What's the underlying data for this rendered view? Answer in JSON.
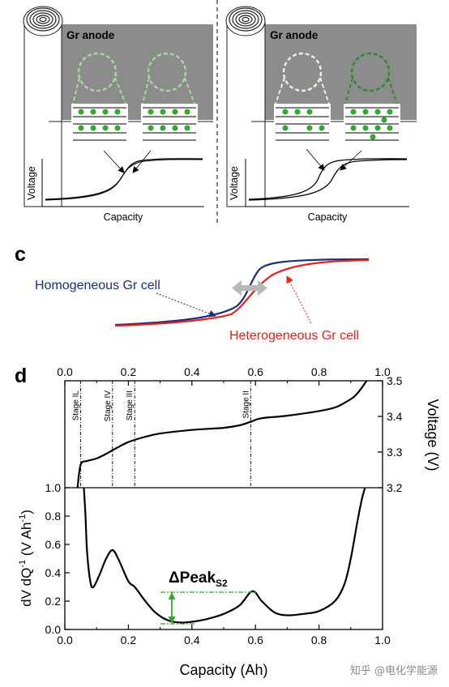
{
  "panel_top": {
    "left": {
      "anode_label": "Gr anode",
      "xlabel": "Capacity",
      "ylabel": "Voltage"
    },
    "right": {
      "anode_label": "Gr anode",
      "xlabel": "Capacity",
      "ylabel": "Voltage"
    }
  },
  "panel_c": {
    "letter": "c",
    "homo_label": "Homogeneous Gr cell",
    "hetero_label": "Heterogeneous Gr cell",
    "colors": {
      "homo": "#1a2f7a",
      "hetero": "#e8201c",
      "arrow": "#b8b8b8"
    }
  },
  "panel_d": {
    "letter": "d",
    "top_ticks": [
      "0.0",
      "0.2",
      "0.4",
      "0.6",
      "0.8",
      "1.0"
    ],
    "bottom_ticks": [
      "0.0",
      "0.2",
      "0.4",
      "0.6",
      "0.8",
      "1.0"
    ],
    "left_ticks": [
      "0.0",
      "0.2",
      "0.4",
      "0.6",
      "0.8",
      "1.0"
    ],
    "right_ticks": [
      "3.2",
      "3.3",
      "3.4",
      "3.5"
    ],
    "xlabel": "Capacity (Ah)",
    "ylabel_right": "Voltage (V)",
    "ylabel_left": {
      "pre": "dV dQ",
      "sup1": "-1",
      "mid": " (V Ah",
      "sup2": "-1",
      "post": ")"
    },
    "delta_label": {
      "main": "ΔPeak",
      "sub": "S2"
    },
    "stages": [
      {
        "label": "Stage IL",
        "x": 0.05
      },
      {
        "label": "Stage IV",
        "x": 0.15
      },
      {
        "label": "Stage III",
        "x": 0.22
      },
      {
        "label": "Stage II",
        "x": 0.585
      }
    ],
    "accent": "#2faa2f"
  },
  "chart_data": [
    {
      "type": "line",
      "name": "voltage",
      "xlabel": "Capacity (Ah)",
      "ylabel": "Voltage (V)",
      "xlim": [
        0.0,
        1.0
      ],
      "ylim": [
        3.2,
        3.5
      ],
      "x": [
        0.04,
        0.05,
        0.07,
        0.1,
        0.13,
        0.16,
        0.2,
        0.25,
        0.3,
        0.4,
        0.5,
        0.55,
        0.585,
        0.62,
        0.7,
        0.8,
        0.85,
        0.88,
        0.91,
        0.93,
        0.95
      ],
      "y": [
        3.2,
        3.265,
        3.275,
        3.282,
        3.295,
        3.31,
        3.328,
        3.342,
        3.352,
        3.362,
        3.368,
        3.375,
        3.385,
        3.395,
        3.402,
        3.415,
        3.425,
        3.438,
        3.455,
        3.475,
        3.5
      ]
    },
    {
      "type": "line",
      "name": "dV/dQ",
      "xlabel": "Capacity (Ah)",
      "ylabel": "dV dQ-1 (V Ah-1)",
      "xlim": [
        0.0,
        1.0
      ],
      "ylim": [
        0.0,
        1.0
      ],
      "x": [
        0.06,
        0.065,
        0.07,
        0.08,
        0.09,
        0.11,
        0.13,
        0.15,
        0.17,
        0.2,
        0.22,
        0.25,
        0.28,
        0.31,
        0.34,
        0.38,
        0.44,
        0.5,
        0.55,
        0.59,
        0.62,
        0.66,
        0.7,
        0.75,
        0.8,
        0.85,
        0.88,
        0.9,
        0.92,
        0.935,
        0.945
      ],
      "y": [
        1.0,
        0.8,
        0.55,
        0.34,
        0.3,
        0.39,
        0.5,
        0.56,
        0.49,
        0.34,
        0.3,
        0.21,
        0.13,
        0.08,
        0.055,
        0.05,
        0.07,
        0.11,
        0.17,
        0.27,
        0.2,
        0.12,
        0.1,
        0.11,
        0.13,
        0.2,
        0.32,
        0.5,
        0.75,
        0.92,
        1.0
      ]
    }
  ]
}
